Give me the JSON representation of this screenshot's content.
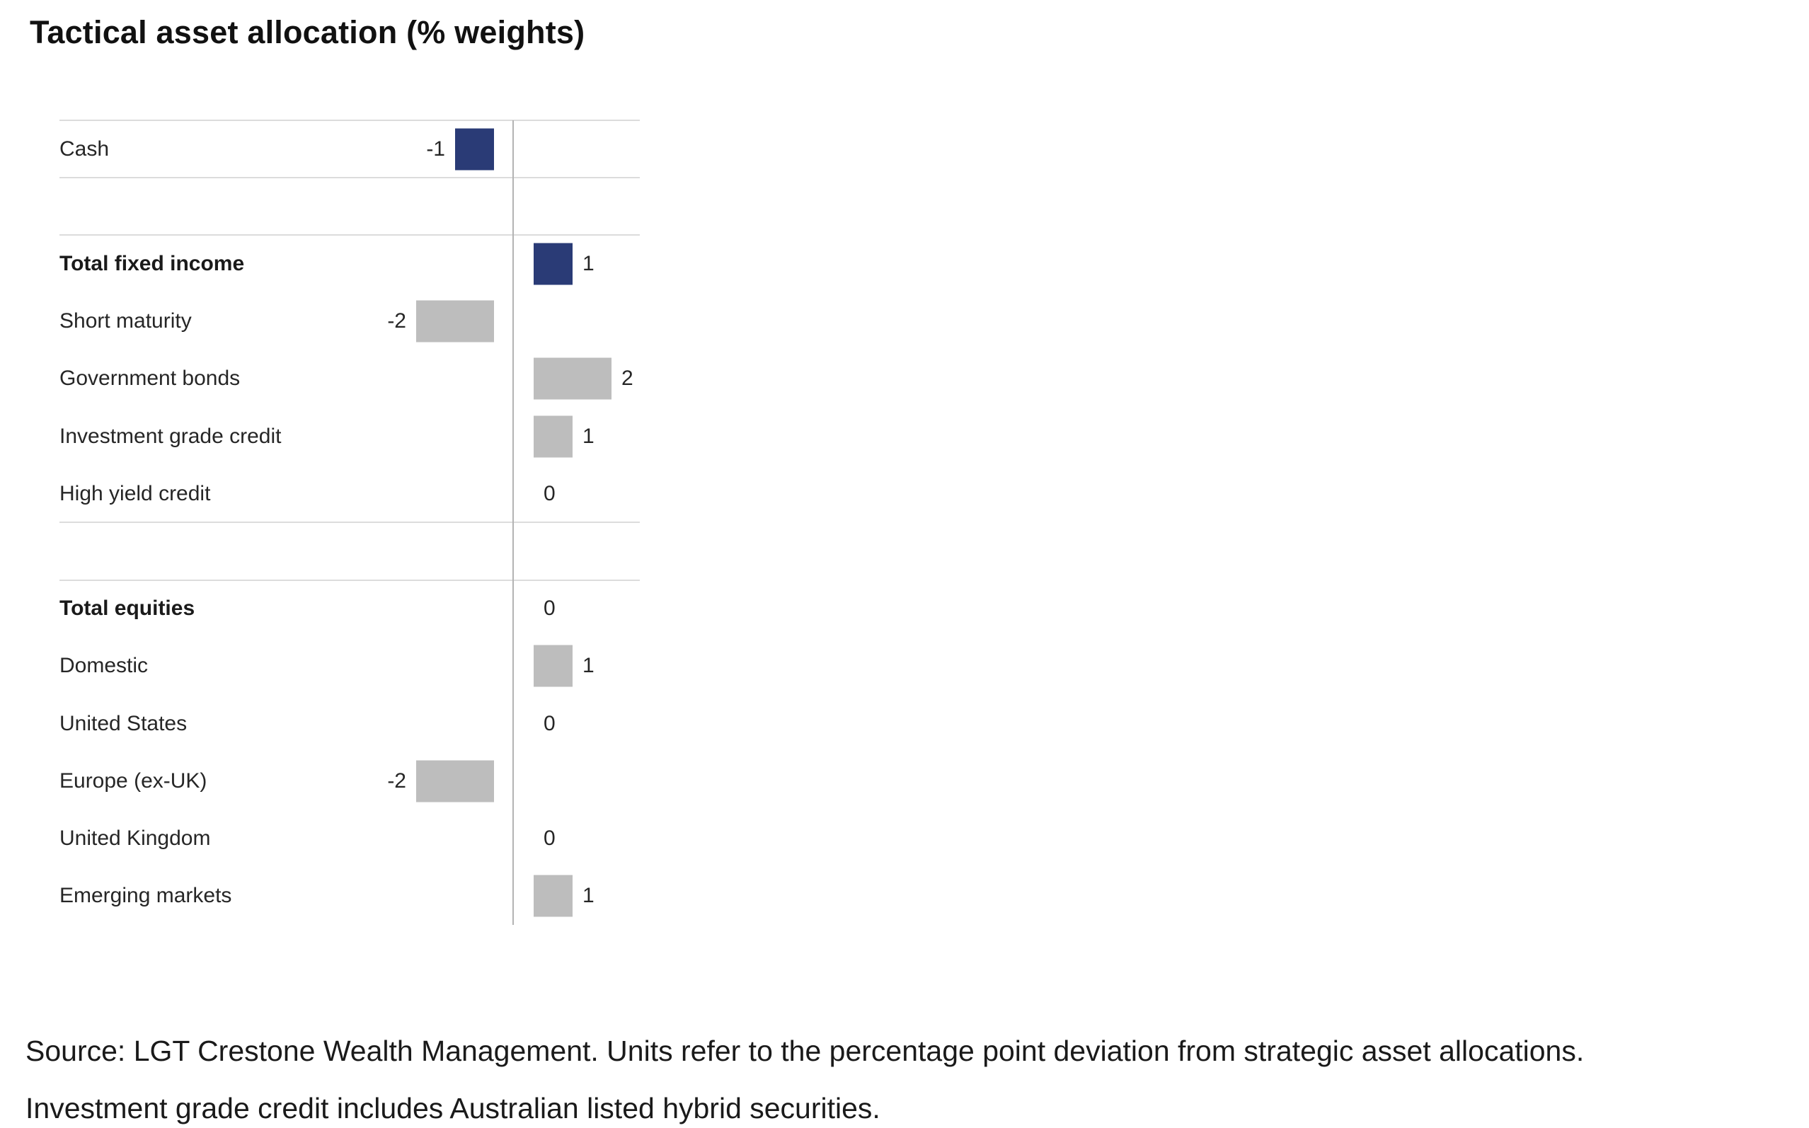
{
  "chart_data": {
    "type": "bar",
    "orientation": "horizontal",
    "title": "Tactical asset allocation (% weights)",
    "value_unit": "percentage point deviation from strategic asset allocation",
    "value_range_shown": [
      -2,
      2
    ],
    "zero_axis_line": true,
    "gridlines": "group separators only",
    "rows": [
      {
        "label": "Cash",
        "value": -1,
        "bold": false,
        "highlight": true
      },
      {
        "spacer": true
      },
      {
        "label": "Total fixed income",
        "value": 1,
        "bold": true,
        "highlight": true
      },
      {
        "label": "Short maturity",
        "value": -2,
        "bold": false,
        "highlight": false
      },
      {
        "label": "Government bonds",
        "value": 2,
        "bold": false,
        "highlight": false
      },
      {
        "label": "Investment grade credit",
        "value": 1,
        "bold": false,
        "highlight": false
      },
      {
        "label": "High yield credit",
        "value": 0,
        "bold": false,
        "highlight": false
      },
      {
        "spacer": true
      },
      {
        "label": "Total equities",
        "value": 0,
        "bold": true,
        "highlight": false
      },
      {
        "label": "Domestic",
        "value": 1,
        "bold": false,
        "highlight": false
      },
      {
        "label": "United States",
        "value": 0,
        "bold": false,
        "highlight": false
      },
      {
        "label": "Europe (ex-UK)",
        "value": -2,
        "bold": false,
        "highlight": false
      },
      {
        "label": "United Kingdom",
        "value": 0,
        "bold": false,
        "highlight": false
      },
      {
        "label": "Emerging markets",
        "value": 1,
        "bold": false,
        "highlight": false
      }
    ]
  },
  "colors": {
    "highlight_bar": "#2a3b76",
    "default_bar": "#bdbdbd",
    "gridline": "#dcdcdc",
    "axis_line": "#b3b3b3",
    "text": "#262626"
  },
  "source_note": {
    "line1": "Source: LGT Crestone Wealth Management. Units refer to the percentage point deviation from strategic asset allocations.",
    "line2": "Investment grade credit includes Australian listed hybrid securities."
  }
}
